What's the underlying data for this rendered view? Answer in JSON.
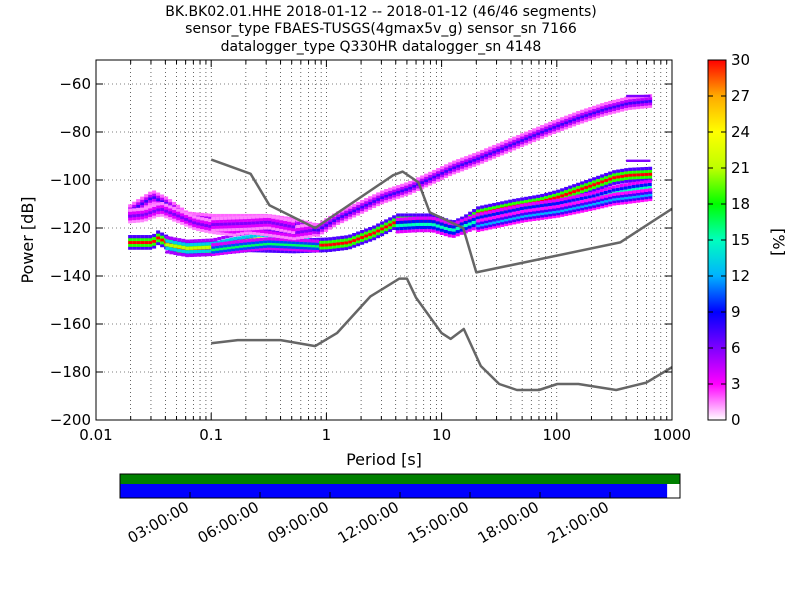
{
  "chart_data": [
    {
      "type": "heatmap",
      "title_lines": [
        "BK.BK02.01.HHE   2018-01-12 -- 2018-01-12  (46/46 segments)",
        "sensor_type FBAES-TUSGS(4gmax5v_g) sensor_sn 7166",
        "datalogger_type Q330HR datalogger_sn 4148"
      ],
      "xlabel": "Period [s]",
      "ylabel": "Power [dB]",
      "xscale": "log",
      "xlim": [
        0.01,
        1000
      ],
      "ylim": [
        -200,
        -50
      ],
      "xtick_values": [
        0.01,
        0.1,
        1,
        10,
        100,
        1000
      ],
      "xtick_labels": [
        "0.01",
        "0.1",
        "1",
        "10",
        "100",
        "1000"
      ],
      "ytick_values": [
        -200,
        -180,
        -160,
        -140,
        -120,
        -100,
        -80,
        -60
      ],
      "ytick_labels": [
        "−200",
        "−180",
        "−160",
        "−140",
        "−120",
        "−100",
        "−80",
        "−60"
      ],
      "grid": "dotted",
      "noise_model_color": "#666666",
      "nhnm": {
        "x": [
          0.1,
          0.22,
          0.32,
          0.8,
          3.8,
          4.6,
          6.3,
          7.9,
          15.4,
          20,
          354.8,
          1000
        ],
        "y": [
          -91.5,
          -97.4,
          -110.5,
          -120,
          -98,
          -96.5,
          -101,
          -113.5,
          -120,
          -138.5,
          -126,
          -112
        ]
      },
      "nlnm": {
        "x": [
          0.1,
          0.17,
          0.4,
          0.8,
          1.24,
          2.4,
          4.3,
          5,
          6,
          10,
          12,
          15.6,
          21.9,
          31.6,
          45,
          70,
          101,
          154,
          328,
          600,
          1000
        ],
        "y": [
          -168,
          -166.7,
          -166.7,
          -169.2,
          -163.7,
          -148.6,
          -141.1,
          -141.1,
          -149,
          -163.8,
          -166.2,
          -162.1,
          -177.5,
          -185,
          -187.5,
          -187.5,
          -185,
          -185,
          -187.5,
          -184.4,
          -178
        ]
      },
      "psd_bands": [
        {
          "x": [
            0.019,
            0.03,
            0.033,
            0.05,
            0.1,
            0.2,
            0.5,
            1,
            1.5,
            2.5,
            4,
            6,
            8,
            12,
            15,
            20,
            40,
            70,
            100,
            200,
            300,
            400,
            650
          ],
          "y": [
            -126,
            -126,
            -124,
            -128.5,
            -128.5,
            -127,
            -127.5,
            -127,
            -126,
            -122,
            -117,
            -117,
            -117,
            -120,
            -118,
            -114,
            -111,
            -109,
            -107,
            -102,
            -99,
            -98,
            -97.5
          ],
          "spread": 1.2,
          "level": 1.0
        },
        {
          "x": [
            0.04,
            0.06,
            0.1,
            0.15,
            0.25,
            0.4,
            0.7
          ],
          "y": [
            -127,
            -128.5,
            -128,
            -126,
            -124.5,
            -125,
            -126
          ],
          "spread": 1.5,
          "level": 0.7
        },
        {
          "x": [
            0.1,
            0.18,
            0.3,
            0.5,
            0.8
          ],
          "y": [
            -129,
            -127.5,
            -126.5,
            -127,
            -127.5
          ],
          "spread": 1.0,
          "level": 0.55
        },
        {
          "x": [
            4,
            6,
            8,
            12,
            20,
            50,
            100,
            200,
            300,
            450,
            650
          ],
          "y": [
            -119,
            -118.5,
            -118.5,
            -121,
            -117,
            -113,
            -111,
            -108,
            -105.5,
            -104,
            -103
          ],
          "spread": 1.3,
          "level": 0.5
        },
        {
          "x": [
            20,
            50,
            100,
            200,
            300,
            450,
            650
          ],
          "y": [
            -119,
            -115,
            -113,
            -110,
            -108,
            -107,
            -106
          ],
          "spread": 1.0,
          "level": 0.4
        },
        {
          "x": [
            0.019,
            0.022,
            0.03,
            0.04,
            0.06,
            0.1,
            0.15,
            0.3,
            0.5,
            0.8,
            1.2,
            2,
            3,
            5,
            8,
            12,
            20,
            40,
            80,
            150,
            250,
            400,
            650
          ],
          "y": [
            -113,
            -111,
            -107,
            -110,
            -116,
            -117,
            -117,
            -117,
            -118.5,
            -121,
            -116,
            -111,
            -107,
            -103.5,
            -99,
            -95,
            -91,
            -85,
            -79,
            -74,
            -70.5,
            -68,
            -67
          ],
          "spread": 1.1,
          "level": 0.25
        },
        {
          "x": [
            0.019,
            0.025,
            0.035,
            0.05,
            0.07,
            0.1,
            0.15,
            0.2,
            0.3,
            0.5,
            0.7
          ],
          "y": [
            -115,
            -114.5,
            -112,
            -115,
            -118,
            -119.5,
            -120.5,
            -119.5,
            -120.5,
            -122,
            -121
          ],
          "spread": 1.2,
          "level": 0.2
        },
        {
          "x": [
            0.1,
            0.2,
            0.3,
            0.5
          ],
          "y": [
            -118.5,
            -118,
            -117.5,
            -119.5
          ],
          "spread": 1.2,
          "level": 0.2
        }
      ],
      "psd_dashes": [
        {
          "x": [
            400,
            650
          ],
          "y": -92,
          "level": 0.2
        },
        {
          "x": [
            400,
            650
          ],
          "y": -65,
          "level": 0.2
        }
      ],
      "colorbar": {
        "label": "[%]",
        "min": 0,
        "max": 30,
        "tick_labels": [
          "0",
          "3",
          "6",
          "9",
          "12",
          "15",
          "18",
          "21",
          "24",
          "27",
          "30"
        ],
        "colormap": "pqlx",
        "colors": [
          "#ffffff",
          "#ff00ff",
          "#7f00ff",
          "#0000ff",
          "#00b2ff",
          "#00ffbe",
          "#00ff00",
          "#beff00",
          "#ffff00",
          "#ffaa00",
          "#ff0000"
        ]
      }
    },
    {
      "type": "timeline",
      "tick_labels": [
        "03:00:00",
        "06:00:00",
        "09:00:00",
        "12:00:00",
        "15:00:00",
        "18:00:00",
        "21:00:00"
      ],
      "tick_hours": [
        3,
        6,
        9,
        12,
        15,
        18,
        21
      ],
      "data_coverage_fraction": 1.0,
      "used_coverage_fraction": 0.977,
      "data_color": "#008000",
      "used_color": "#0000ff"
    }
  ]
}
